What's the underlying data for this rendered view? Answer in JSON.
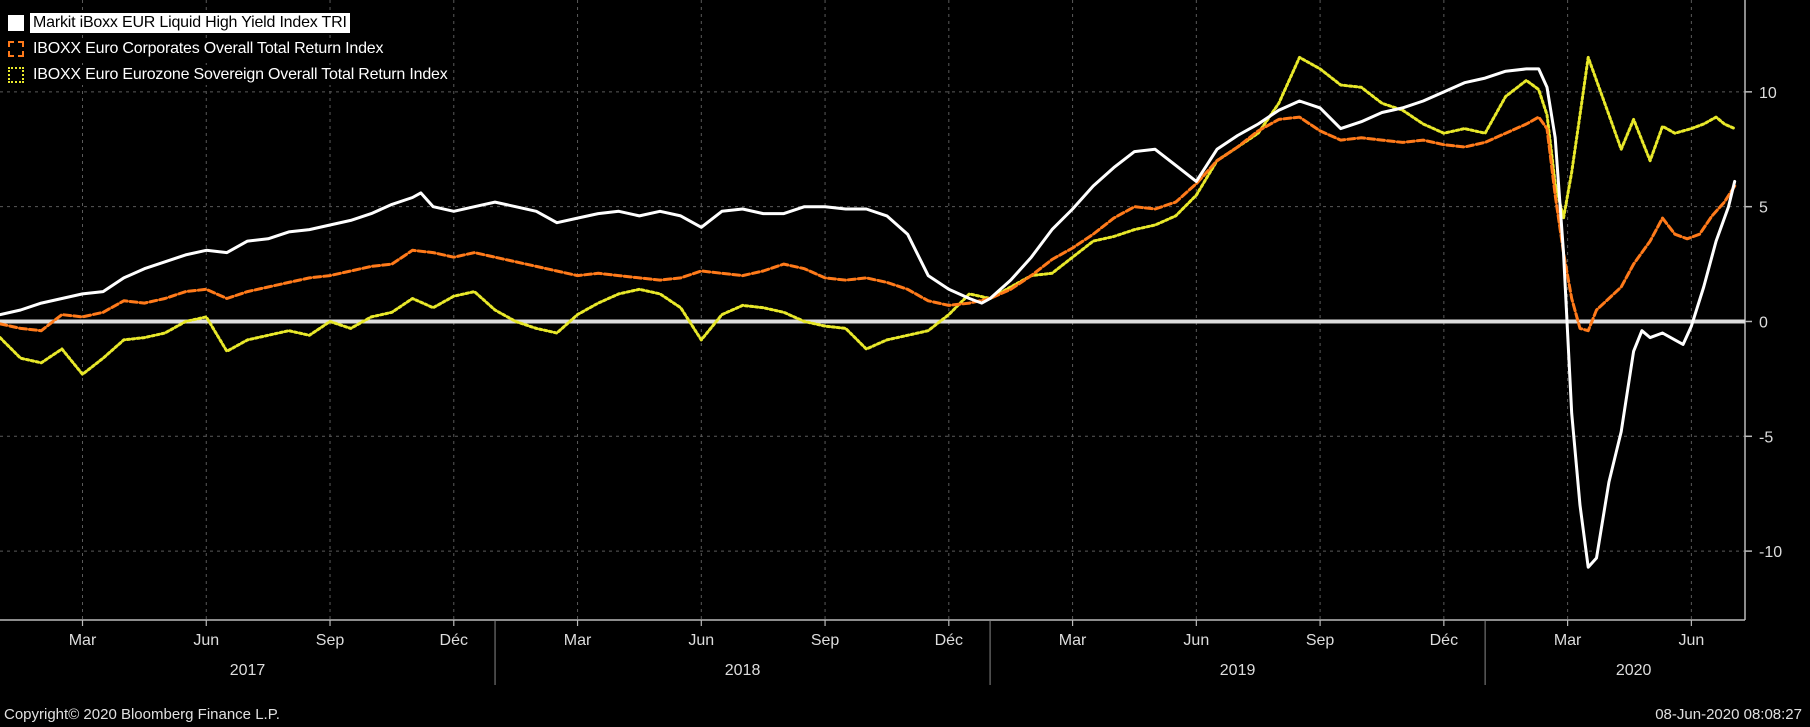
{
  "legend": {
    "items": [
      {
        "label": "Markit iBoxx EUR Liquid High Yield Index TRI"
      },
      {
        "label": "IBOXX Euro Corporates Overall Total Return Index"
      },
      {
        "label": "IBOXX Euro Eurozone Sovereign Overall Total Return Index"
      }
    ]
  },
  "footer": {
    "copyright": "Copyright© 2020 Bloomberg Finance L.P.",
    "timestamp": "08-Jun-2020 08:08:27"
  },
  "colors": {
    "background": "#000000",
    "high_yield": "#ffffff",
    "corporates": "#ff7a1a",
    "sovereign": "#e8e82a",
    "zero_line": "#dddddd",
    "grid": "#5a5a5a"
  },
  "chart_data": {
    "type": "line",
    "x_unit": "months since Jan 2017",
    "xlim": [
      0,
      42.3
    ],
    "ylim": [
      -13,
      14
    ],
    "y_ticks": [
      10,
      5,
      0,
      -5,
      -10
    ],
    "y_tick_labels": [
      "10",
      "5",
      "0",
      "-5",
      "-10"
    ],
    "x_ticks": [
      {
        "x": 2,
        "label": "Mar"
      },
      {
        "x": 5,
        "label": "Jun"
      },
      {
        "x": 8,
        "label": "Sep"
      },
      {
        "x": 11,
        "label": "Déc"
      },
      {
        "x": 14,
        "label": "Mar"
      },
      {
        "x": 17,
        "label": "Jun"
      },
      {
        "x": 20,
        "label": "Sep"
      },
      {
        "x": 23,
        "label": "Déc"
      },
      {
        "x": 26,
        "label": "Mar"
      },
      {
        "x": 29,
        "label": "Jun"
      },
      {
        "x": 32,
        "label": "Sep"
      },
      {
        "x": 35,
        "label": "Déc"
      },
      {
        "x": 38,
        "label": "Mar"
      },
      {
        "x": 41,
        "label": "Jun"
      }
    ],
    "years": [
      {
        "label": "2017",
        "x": 6,
        "start": 0,
        "end": 12
      },
      {
        "label": "2018",
        "x": 18,
        "start": 12,
        "end": 24
      },
      {
        "label": "2019",
        "x": 30,
        "start": 24,
        "end": 36
      },
      {
        "label": "2020",
        "x": 39.6,
        "start": 36,
        "end": 42.3
      }
    ],
    "grid": true,
    "zero_line": true,
    "legend_position": "top-left",
    "series": [
      {
        "name": "Markit iBoxx EUR Liquid High Yield Index TRI",
        "color": "#ffffff",
        "style": "solid",
        "points": [
          [
            0,
            0.3
          ],
          [
            0.5,
            0.5
          ],
          [
            1,
            0.8
          ],
          [
            1.5,
            1.0
          ],
          [
            2,
            1.2
          ],
          [
            2.5,
            1.3
          ],
          [
            3,
            1.9
          ],
          [
            3.5,
            2.3
          ],
          [
            4,
            2.6
          ],
          [
            4.5,
            2.9
          ],
          [
            5,
            3.1
          ],
          [
            5.5,
            3.0
          ],
          [
            6,
            3.5
          ],
          [
            6.5,
            3.6
          ],
          [
            7,
            3.9
          ],
          [
            7.5,
            4.0
          ],
          [
            8,
            4.2
          ],
          [
            8.5,
            4.4
          ],
          [
            9,
            4.7
          ],
          [
            9.5,
            5.1
          ],
          [
            10,
            5.4
          ],
          [
            10.2,
            5.6
          ],
          [
            10.5,
            5.0
          ],
          [
            11,
            4.8
          ],
          [
            11.5,
            5.0
          ],
          [
            12,
            5.2
          ],
          [
            12.5,
            5.0
          ],
          [
            13,
            4.8
          ],
          [
            13.5,
            4.3
          ],
          [
            14,
            4.5
          ],
          [
            14.5,
            4.7
          ],
          [
            15,
            4.8
          ],
          [
            15.5,
            4.6
          ],
          [
            16,
            4.8
          ],
          [
            16.5,
            4.6
          ],
          [
            17,
            4.1
          ],
          [
            17.5,
            4.8
          ],
          [
            18,
            4.9
          ],
          [
            18.5,
            4.7
          ],
          [
            19,
            4.7
          ],
          [
            19.5,
            5.0
          ],
          [
            20,
            5.0
          ],
          [
            20.5,
            4.9
          ],
          [
            21,
            4.9
          ],
          [
            21.5,
            4.6
          ],
          [
            22,
            3.8
          ],
          [
            22.5,
            2.0
          ],
          [
            23,
            1.4
          ],
          [
            23.5,
            1.0
          ],
          [
            23.8,
            0.8
          ],
          [
            24,
            1.0
          ],
          [
            24.5,
            1.8
          ],
          [
            25,
            2.8
          ],
          [
            25.5,
            4.0
          ],
          [
            26,
            4.9
          ],
          [
            26.5,
            5.9
          ],
          [
            27,
            6.7
          ],
          [
            27.5,
            7.4
          ],
          [
            28,
            7.5
          ],
          [
            28.5,
            6.8
          ],
          [
            29,
            6.1
          ],
          [
            29.5,
            7.5
          ],
          [
            30,
            8.1
          ],
          [
            30.5,
            8.6
          ],
          [
            31,
            9.2
          ],
          [
            31.5,
            9.6
          ],
          [
            32,
            9.3
          ],
          [
            32.5,
            8.4
          ],
          [
            33,
            8.7
          ],
          [
            33.5,
            9.1
          ],
          [
            34,
            9.3
          ],
          [
            34.5,
            9.6
          ],
          [
            35,
            10.0
          ],
          [
            35.5,
            10.4
          ],
          [
            36,
            10.6
          ],
          [
            36.5,
            10.9
          ],
          [
            37,
            11.0
          ],
          [
            37.3,
            11.0
          ],
          [
            37.5,
            10.2
          ],
          [
            37.7,
            8.0
          ],
          [
            37.9,
            3.0
          ],
          [
            38.1,
            -4.0
          ],
          [
            38.3,
            -8.0
          ],
          [
            38.5,
            -10.7
          ],
          [
            38.7,
            -10.3
          ],
          [
            39,
            -7.0
          ],
          [
            39.3,
            -4.8
          ],
          [
            39.6,
            -1.3
          ],
          [
            39.8,
            -0.4
          ],
          [
            40,
            -0.7
          ],
          [
            40.3,
            -0.5
          ],
          [
            40.6,
            -0.8
          ],
          [
            40.8,
            -1.0
          ],
          [
            41,
            -0.2
          ],
          [
            41.3,
            1.5
          ],
          [
            41.6,
            3.5
          ],
          [
            41.9,
            5.0
          ],
          [
            42.05,
            6.1
          ]
        ]
      },
      {
        "name": "IBOXX Euro Corporates Overall Total Return Index",
        "color": "#ff7a1a",
        "style": "dashed",
        "points": [
          [
            0,
            -0.1
          ],
          [
            0.5,
            -0.3
          ],
          [
            1,
            -0.4
          ],
          [
            1.5,
            0.3
          ],
          [
            2,
            0.2
          ],
          [
            2.5,
            0.4
          ],
          [
            3,
            0.9
          ],
          [
            3.5,
            0.8
          ],
          [
            4,
            1.0
          ],
          [
            4.5,
            1.3
          ],
          [
            5,
            1.4
          ],
          [
            5.5,
            1.0
          ],
          [
            6,
            1.3
          ],
          [
            6.5,
            1.5
          ],
          [
            7,
            1.7
          ],
          [
            7.5,
            1.9
          ],
          [
            8,
            2.0
          ],
          [
            8.5,
            2.2
          ],
          [
            9,
            2.4
          ],
          [
            9.5,
            2.5
          ],
          [
            10,
            3.1
          ],
          [
            10.5,
            3.0
          ],
          [
            11,
            2.8
          ],
          [
            11.5,
            3.0
          ],
          [
            12,
            2.8
          ],
          [
            12.5,
            2.6
          ],
          [
            13,
            2.4
          ],
          [
            13.5,
            2.2
          ],
          [
            14,
            2.0
          ],
          [
            14.5,
            2.1
          ],
          [
            15,
            2.0
          ],
          [
            15.5,
            1.9
          ],
          [
            16,
            1.8
          ],
          [
            16.5,
            1.9
          ],
          [
            17,
            2.2
          ],
          [
            17.5,
            2.1
          ],
          [
            18,
            2.0
          ],
          [
            18.5,
            2.2
          ],
          [
            19,
            2.5
          ],
          [
            19.5,
            2.3
          ],
          [
            20,
            1.9
          ],
          [
            20.5,
            1.8
          ],
          [
            21,
            1.9
          ],
          [
            21.5,
            1.7
          ],
          [
            22,
            1.4
          ],
          [
            22.5,
            0.9
          ],
          [
            23,
            0.7
          ],
          [
            23.5,
            0.8
          ],
          [
            24,
            1.0
          ],
          [
            24.5,
            1.4
          ],
          [
            25,
            2.0
          ],
          [
            25.5,
            2.7
          ],
          [
            26,
            3.2
          ],
          [
            26.5,
            3.8
          ],
          [
            27,
            4.5
          ],
          [
            27.5,
            5.0
          ],
          [
            28,
            4.9
          ],
          [
            28.5,
            5.2
          ],
          [
            29,
            6.0
          ],
          [
            29.5,
            7.0
          ],
          [
            30,
            7.6
          ],
          [
            30.5,
            8.3
          ],
          [
            31,
            8.8
          ],
          [
            31.5,
            8.9
          ],
          [
            32,
            8.3
          ],
          [
            32.5,
            7.9
          ],
          [
            33,
            8.0
          ],
          [
            33.5,
            7.9
          ],
          [
            34,
            7.8
          ],
          [
            34.5,
            7.9
          ],
          [
            35,
            7.7
          ],
          [
            35.5,
            7.6
          ],
          [
            36,
            7.8
          ],
          [
            36.5,
            8.2
          ],
          [
            37,
            8.6
          ],
          [
            37.3,
            8.9
          ],
          [
            37.5,
            8.4
          ],
          [
            37.7,
            5.5
          ],
          [
            37.9,
            3.0
          ],
          [
            38.1,
            1.0
          ],
          [
            38.3,
            -0.3
          ],
          [
            38.5,
            -0.4
          ],
          [
            38.7,
            0.5
          ],
          [
            39,
            1.0
          ],
          [
            39.3,
            1.5
          ],
          [
            39.6,
            2.5
          ],
          [
            40,
            3.5
          ],
          [
            40.3,
            4.5
          ],
          [
            40.6,
            3.8
          ],
          [
            40.9,
            3.6
          ],
          [
            41.2,
            3.8
          ],
          [
            41.5,
            4.6
          ],
          [
            41.8,
            5.2
          ],
          [
            42.05,
            5.9
          ]
        ]
      },
      {
        "name": "IBOXX Euro Eurozone Sovereign Overall Total Return Index",
        "color": "#e8e82a",
        "style": "dotted",
        "points": [
          [
            0,
            -0.7
          ],
          [
            0.5,
            -1.6
          ],
          [
            1,
            -1.8
          ],
          [
            1.5,
            -1.2
          ],
          [
            2,
            -2.3
          ],
          [
            2.5,
            -1.6
          ],
          [
            3,
            -0.8
          ],
          [
            3.5,
            -0.7
          ],
          [
            4,
            -0.5
          ],
          [
            4.5,
            0.0
          ],
          [
            5,
            0.2
          ],
          [
            5.5,
            -1.3
          ],
          [
            6,
            -0.8
          ],
          [
            6.5,
            -0.6
          ],
          [
            7,
            -0.4
          ],
          [
            7.5,
            -0.6
          ],
          [
            8,
            0.0
          ],
          [
            8.5,
            -0.3
          ],
          [
            9,
            0.2
          ],
          [
            9.5,
            0.4
          ],
          [
            10,
            1.0
          ],
          [
            10.5,
            0.6
          ],
          [
            11,
            1.1
          ],
          [
            11.5,
            1.3
          ],
          [
            12,
            0.5
          ],
          [
            12.5,
            0.0
          ],
          [
            13,
            -0.3
          ],
          [
            13.5,
            -0.5
          ],
          [
            14,
            0.3
          ],
          [
            14.5,
            0.8
          ],
          [
            15,
            1.2
          ],
          [
            15.5,
            1.4
          ],
          [
            16,
            1.2
          ],
          [
            16.5,
            0.6
          ],
          [
            17,
            -0.8
          ],
          [
            17.5,
            0.3
          ],
          [
            18,
            0.7
          ],
          [
            18.5,
            0.6
          ],
          [
            19,
            0.4
          ],
          [
            19.5,
            0.0
          ],
          [
            20,
            -0.2
          ],
          [
            20.5,
            -0.3
          ],
          [
            21,
            -1.2
          ],
          [
            21.5,
            -0.8
          ],
          [
            22,
            -0.6
          ],
          [
            22.5,
            -0.4
          ],
          [
            23,
            0.3
          ],
          [
            23.5,
            1.2
          ],
          [
            24,
            1.0
          ],
          [
            24.5,
            1.5
          ],
          [
            25,
            2.0
          ],
          [
            25.5,
            2.1
          ],
          [
            26,
            2.8
          ],
          [
            26.5,
            3.5
          ],
          [
            27,
            3.7
          ],
          [
            27.5,
            4.0
          ],
          [
            28,
            4.2
          ],
          [
            28.5,
            4.6
          ],
          [
            29,
            5.5
          ],
          [
            29.5,
            7.0
          ],
          [
            30,
            7.6
          ],
          [
            30.5,
            8.2
          ],
          [
            31,
            9.5
          ],
          [
            31.5,
            11.5
          ],
          [
            32,
            11.0
          ],
          [
            32.5,
            10.3
          ],
          [
            33,
            10.2
          ],
          [
            33.5,
            9.5
          ],
          [
            34,
            9.2
          ],
          [
            34.5,
            8.6
          ],
          [
            35,
            8.2
          ],
          [
            35.5,
            8.4
          ],
          [
            36,
            8.2
          ],
          [
            36.5,
            9.8
          ],
          [
            37,
            10.5
          ],
          [
            37.3,
            10.1
          ],
          [
            37.5,
            9.0
          ],
          [
            37.7,
            6.0
          ],
          [
            37.9,
            4.5
          ],
          [
            38.1,
            6.5
          ],
          [
            38.3,
            9.0
          ],
          [
            38.5,
            11.5
          ],
          [
            38.7,
            10.5
          ],
          [
            39,
            9.0
          ],
          [
            39.3,
            7.5
          ],
          [
            39.6,
            8.8
          ],
          [
            40,
            7.0
          ],
          [
            40.3,
            8.5
          ],
          [
            40.6,
            8.2
          ],
          [
            41,
            8.4
          ],
          [
            41.3,
            8.6
          ],
          [
            41.6,
            8.9
          ],
          [
            41.8,
            8.6
          ],
          [
            42.05,
            8.4
          ]
        ]
      }
    ]
  }
}
